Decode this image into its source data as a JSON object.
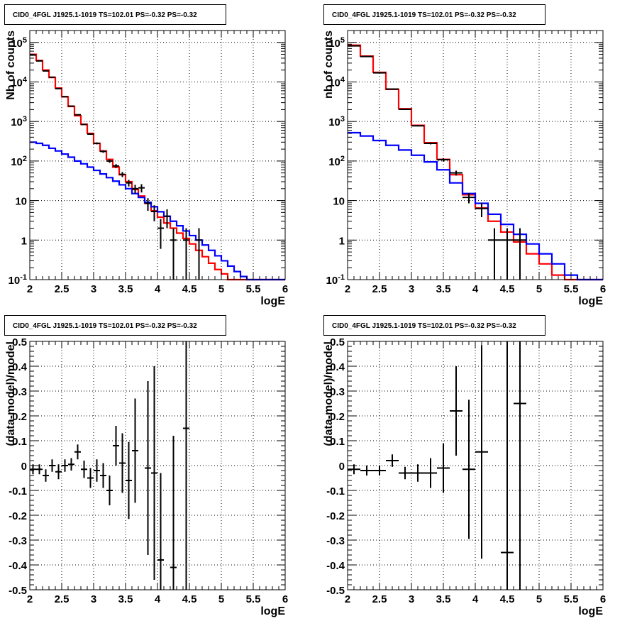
{
  "colors": {
    "data": "#000000",
    "total_model": "#ff0000",
    "background_model": "#0000ff",
    "grid": "#000000",
    "frame": "#000000"
  },
  "pads": [
    {
      "title": "CID0_4FGL J1925.1-1019 TS=102.01 PS=-0.32 PS=-0.32",
      "xlabel": "logE",
      "ylabel": "Nb of counts"
    },
    {
      "title": "CID0_4FGL J1925.1-1019 TS=102.01 PS=-0.32 PS=-0.32",
      "xlabel": "logE",
      "ylabel": "nb of counts"
    },
    {
      "title": "CID0_4FGL J1925.1-1019 TS=102.01 PS=-0.32 PS=-0.32",
      "xlabel": "logE",
      "ylabel": "(data-model)/model"
    },
    {
      "title": "CID0_4FGL J1925.1-1019 TS=102.01 PS=-0.32 PS=-0.32",
      "xlabel": "logE",
      "ylabel": "(data-model)/model"
    }
  ],
  "chart_data": [
    {
      "type": "line",
      "title": "CID0_4FGL J1925.1-1019 TS=102.01 PS=-0.32 PS=-0.32",
      "xlabel": "logE",
      "ylabel": "Nb of counts",
      "xlim": [
        2,
        6
      ],
      "ylim": [
        0.1,
        200000
      ],
      "log_y": true,
      "grid": true,
      "x_ticks": [
        "2",
        "2.5",
        "3",
        "3.5",
        "4",
        "4.5",
        "5",
        "5.5",
        "6"
      ],
      "y_ticks": [
        "10^-1",
        "1",
        "10",
        "10^2",
        "10^3",
        "10^4",
        "10^5"
      ],
      "bin_edges": [
        2.0,
        2.1,
        2.2,
        2.3,
        2.4,
        2.5,
        2.6,
        2.7,
        2.8,
        2.9,
        3.0,
        3.1,
        3.2,
        3.3,
        3.4,
        3.5,
        3.6,
        3.7,
        3.8,
        3.9,
        4.0,
        4.1,
        4.2,
        4.3,
        4.4,
        4.5,
        4.6,
        4.7,
        4.8,
        4.9,
        5.0,
        5.1,
        5.2,
        5.3,
        5.4,
        5.5,
        5.6,
        5.7,
        5.8,
        5.9,
        6.0
      ],
      "series": [
        {
          "role": "total_model",
          "style": "step",
          "values": [
            50000,
            35000,
            20000,
            13000,
            7000,
            4200,
            2400,
            1400,
            850,
            500,
            280,
            180,
            110,
            70,
            45,
            30,
            19,
            13,
            8.5,
            5.5,
            3.8,
            2.7,
            2.0,
            1.5,
            1.1,
            0.8,
            0.55,
            0.38,
            0.26,
            0.18,
            0.14,
            0.1,
            0.1,
            0.1,
            0.1,
            0.1,
            0.1,
            0.1,
            0.1,
            0.1
          ]
        },
        {
          "role": "background_model",
          "style": "step",
          "values": [
            300,
            280,
            250,
            210,
            180,
            150,
            125,
            100,
            85,
            70,
            58,
            47,
            38,
            31,
            25,
            20,
            15,
            12,
            9,
            7,
            5.2,
            4.0,
            3.0,
            2.3,
            1.7,
            1.3,
            1.0,
            0.75,
            0.55,
            0.4,
            0.3,
            0.22,
            0.16,
            0.12,
            0.1,
            0.1,
            0.1,
            0.1,
            0.1,
            0.1
          ]
        },
        {
          "role": "data",
          "style": "errorbar",
          "points": [
            {
              "x": 2.05,
              "y": 48000
            },
            {
              "x": 2.15,
              "y": 34000
            },
            {
              "x": 2.25,
              "y": 19000
            },
            {
              "x": 2.35,
              "y": 13200
            },
            {
              "x": 2.45,
              "y": 6800
            },
            {
              "x": 2.55,
              "y": 4250
            },
            {
              "x": 2.65,
              "y": 2450
            },
            {
              "x": 2.75,
              "y": 1480
            },
            {
              "x": 2.85,
              "y": 840
            },
            {
              "x": 2.95,
              "y": 480
            },
            {
              "x": 3.05,
              "y": 280
            },
            {
              "x": 3.15,
              "y": 175
            },
            {
              "x": 3.25,
              "y": 100
            },
            {
              "x": 3.35,
              "y": 75
            },
            {
              "x": 3.45,
              "y": 46
            },
            {
              "x": 3.55,
              "y": 28
            },
            {
              "x": 3.65,
              "y": 20,
              "yerr": 5
            },
            {
              "x": 3.75,
              "y": 21,
              "yerr": 5
            },
            {
              "x": 3.85,
              "y": 8.5,
              "yerr": 3
            },
            {
              "x": 3.95,
              "y": 5.3,
              "yerr": 2.3
            },
            {
              "x": 4.05,
              "y": 2,
              "yerr": 1.4
            },
            {
              "x": 4.15,
              "y": 4,
              "yerr": 2
            },
            {
              "x": 4.25,
              "y": 1,
              "yerr": 1
            },
            {
              "x": 4.45,
              "y": 1,
              "yerr": 1
            },
            {
              "x": 4.65,
              "y": 1,
              "yerr": 1
            }
          ]
        }
      ]
    },
    {
      "type": "line",
      "title": "CID0_4FGL J1925.1-1019 TS=102.01 PS=-0.32 PS=-0.32",
      "xlabel": "logE",
      "ylabel": "nb of counts",
      "xlim": [
        2,
        6
      ],
      "ylim": [
        0.1,
        200000
      ],
      "log_y": true,
      "grid": true,
      "x_ticks": [
        "2",
        "2.5",
        "3",
        "3.5",
        "4",
        "4.5",
        "5",
        "5.5",
        "6"
      ],
      "y_ticks": [
        "10^-1",
        "1",
        "10",
        "10^2",
        "10^3",
        "10^4",
        "10^5"
      ],
      "bin_edges": [
        2.0,
        2.2,
        2.4,
        2.6,
        2.8,
        3.0,
        3.2,
        3.4,
        3.6,
        3.8,
        4.0,
        4.2,
        4.4,
        4.6,
        4.8,
        5.0,
        5.2,
        5.4,
        5.6,
        5.8,
        6.0
      ],
      "series": [
        {
          "role": "total_model",
          "style": "step",
          "values": [
            85000,
            45000,
            17500,
            6500,
            2100,
            800,
            290,
            110,
            45,
            14,
            6.5,
            3,
            1.6,
            0.9,
            0.45,
            0.25,
            0.13,
            0.1,
            0.1,
            0.1
          ]
        },
        {
          "role": "background_model",
          "style": "step",
          "values": [
            520,
            430,
            330,
            250,
            190,
            140,
            95,
            60,
            28,
            15,
            8.5,
            4.5,
            2.5,
            1.4,
            0.8,
            0.45,
            0.25,
            0.13,
            0.1,
            0.1
          ]
        },
        {
          "role": "data",
          "style": "errorbar",
          "points": [
            {
              "x": 2.1,
              "y": 82000
            },
            {
              "x": 2.3,
              "y": 44000
            },
            {
              "x": 2.5,
              "y": 17000
            },
            {
              "x": 2.7,
              "y": 6600
            },
            {
              "x": 2.9,
              "y": 2030
            },
            {
              "x": 3.1,
              "y": 780
            },
            {
              "x": 3.3,
              "y": 280
            },
            {
              "x": 3.5,
              "y": 108
            },
            {
              "x": 3.7,
              "y": 50,
              "yerr": 7
            },
            {
              "x": 3.9,
              "y": 12,
              "yerr": 3.5
            },
            {
              "x": 4.1,
              "y": 6.3,
              "yerr": 2.5
            },
            {
              "x": 4.3,
              "y": 1,
              "yerr": 1
            },
            {
              "x": 4.5,
              "y": 1,
              "yerr": 1
            },
            {
              "x": 4.7,
              "y": 1,
              "yerr": 1
            }
          ]
        }
      ]
    },
    {
      "type": "scatter",
      "title": "CID0_4FGL J1925.1-1019 TS=102.01 PS=-0.32 PS=-0.32",
      "xlabel": "logE",
      "ylabel": "(data-model)/model",
      "xlim": [
        2,
        6
      ],
      "ylim": [
        -0.5,
        0.5
      ],
      "grid": true,
      "x_ticks": [
        "2",
        "2.5",
        "3",
        "3.5",
        "4",
        "4.5",
        "5",
        "5.5",
        "6"
      ],
      "y_ticks": [
        "-0.5",
        "-0.4",
        "-0.3",
        "-0.2",
        "-0.1",
        "0",
        "0.1",
        "0.2",
        "0.3",
        "0.4",
        "0.5"
      ],
      "series": [
        {
          "role": "data",
          "style": "errorbar",
          "xerr": 0.05,
          "points": [
            {
              "x": 2.05,
              "y": -0.015,
              "yerr": 0.02
            },
            {
              "x": 2.15,
              "y": -0.015,
              "yerr": 0.02
            },
            {
              "x": 2.25,
              "y": -0.04,
              "yerr": 0.025
            },
            {
              "x": 2.35,
              "y": 0.0,
              "yerr": 0.025
            },
            {
              "x": 2.45,
              "y": -0.025,
              "yerr": 0.03
            },
            {
              "x": 2.55,
              "y": 0.0,
              "yerr": 0.025
            },
            {
              "x": 2.65,
              "y": 0.005,
              "yerr": 0.025
            },
            {
              "x": 2.75,
              "y": 0.055,
              "yerr": 0.03
            },
            {
              "x": 2.85,
              "y": -0.015,
              "yerr": 0.035
            },
            {
              "x": 2.95,
              "y": -0.05,
              "yerr": 0.04
            },
            {
              "x": 3.05,
              "y": -0.02,
              "yerr": 0.045
            },
            {
              "x": 3.15,
              "y": -0.04,
              "yerr": 0.05
            },
            {
              "x": 3.25,
              "y": -0.1,
              "yerr": 0.06
            },
            {
              "x": 3.35,
              "y": 0.08,
              "yerr": 0.08
            },
            {
              "x": 3.45,
              "y": 0.01,
              "yerr": 0.12
            },
            {
              "x": 3.55,
              "y": -0.06,
              "yerr": 0.155
            },
            {
              "x": 3.65,
              "y": 0.06,
              "yerr": 0.21
            },
            {
              "x": 3.85,
              "y": -0.01,
              "yerr": 0.35
            },
            {
              "x": 3.95,
              "y": -0.03,
              "yerr": 0.43
            },
            {
              "x": 4.05,
              "y": -0.38,
              "yerr": 0.35
            },
            {
              "x": 4.25,
              "y": -0.41,
              "yerr": 0.53
            },
            {
              "x": 4.45,
              "y": 0.15,
              "yerr": 0.71
            }
          ]
        }
      ]
    },
    {
      "type": "scatter",
      "title": "CID0_4FGL J1925.1-1019 TS=102.01 PS=-0.32 PS=-0.32",
      "xlabel": "logE",
      "ylabel": "(data-model)/model",
      "xlim": [
        2,
        6
      ],
      "ylim": [
        -0.5,
        0.5
      ],
      "grid": true,
      "x_ticks": [
        "2",
        "2.5",
        "3",
        "3.5",
        "4",
        "4.5",
        "5",
        "5.5",
        "6"
      ],
      "y_ticks": [
        "-0.5",
        "-0.4",
        "-0.3",
        "-0.2",
        "-0.1",
        "0",
        "0.1",
        "0.2",
        "0.3",
        "0.4",
        "0.5"
      ],
      "series": [
        {
          "role": "data",
          "style": "errorbar",
          "xerr": 0.1,
          "points": [
            {
              "x": 2.1,
              "y": -0.015,
              "yerr": 0.02
            },
            {
              "x": 2.3,
              "y": -0.02,
              "yerr": 0.02
            },
            {
              "x": 2.5,
              "y": -0.02,
              "yerr": 0.02
            },
            {
              "x": 2.7,
              "y": 0.02,
              "yerr": 0.025
            },
            {
              "x": 2.9,
              "y": -0.03,
              "yerr": 0.025
            },
            {
              "x": 3.1,
              "y": -0.03,
              "yerr": 0.035
            },
            {
              "x": 3.3,
              "y": -0.03,
              "yerr": 0.06
            },
            {
              "x": 3.5,
              "y": -0.01,
              "yerr": 0.1
            },
            {
              "x": 3.7,
              "y": 0.22,
              "yerr": 0.18
            },
            {
              "x": 3.9,
              "y": -0.015,
              "yerr": 0.28
            },
            {
              "x": 4.1,
              "y": 0.055,
              "yerr": 0.43
            },
            {
              "x": 4.5,
              "y": -0.35,
              "yerr": 0.85
            },
            {
              "x": 4.7,
              "y": 0.25,
              "yerr": 0.85
            }
          ]
        }
      ]
    }
  ]
}
